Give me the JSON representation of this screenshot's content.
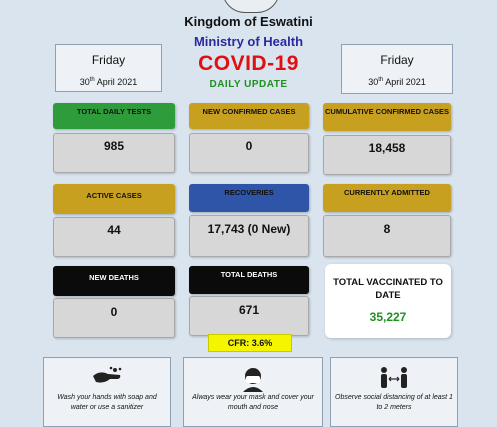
{
  "header": {
    "kingdom": "Kingdom of Eswatini",
    "ministry": "Ministry of Health",
    "title": "COVID-19",
    "subtitle": "DAILY UPDATE"
  },
  "date_left": {
    "day": "Friday",
    "date_num": "30",
    "date_sup": "th",
    "date_rest": " April 2021"
  },
  "date_right": {
    "day": "Friday",
    "date_num": "30",
    "date_sup": "th",
    "date_rest": " April 2021"
  },
  "stats": {
    "total_daily_tests": {
      "label": "TOTAL DAILY TESTS",
      "value": "985"
    },
    "new_confirmed_cases": {
      "label": "NEW CONFIRMED CASES",
      "value": "0"
    },
    "cumulative_confirmed_cases": {
      "label": "CUMULATIVE CONFIRMED CASES",
      "value": "18,458"
    },
    "active_cases": {
      "label": "ACTIVE CASES",
      "value": "44"
    },
    "recoveries": {
      "label": "RECOVERIES",
      "value": "17,743 (0 New)"
    },
    "currently_admitted": {
      "label": "CURRENTLY ADMITTED",
      "value": "8"
    },
    "new_deaths": {
      "label": "NEW DEATHS",
      "value": "0"
    },
    "total_deaths": {
      "label": "TOTAL DEATHS",
      "value": "671"
    }
  },
  "vaccinated": {
    "label": "TOTAL VACCINATED TO DATE",
    "value": "35,227"
  },
  "cfr": "CFR: 3.6%",
  "tips": {
    "wash": "Wash your hands with soap and water or use a sanitizer",
    "mask": "Always wear your mask and cover your mouth and nose",
    "distance": "Observe social distancing of at least 1 to 2 meters"
  },
  "colors": {
    "background": "#d9e4ef",
    "title_red": "#e01010",
    "subtitle_green": "#1f8f1f",
    "ministry_blue": "#2a2aa0",
    "header_green": "#2e9c3a",
    "header_gold": "#c8a020",
    "header_blue": "#2e55a8",
    "header_black": "#0b0b0b",
    "cfr_yellow": "#f5f500"
  },
  "icons": [
    "seal-icon",
    "hand-wash-icon",
    "face-mask-icon",
    "social-distance-icon"
  ]
}
